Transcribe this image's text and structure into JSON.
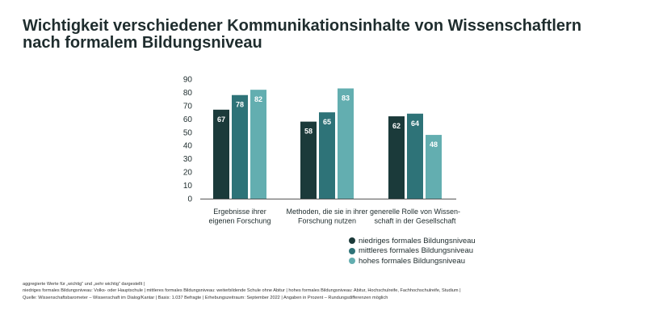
{
  "title_lines": [
    "Wichtigkeit verschiedener Kommunikationsinhalte von Wissenschaftlern",
    "nach formalem Bildungsniveau"
  ],
  "chart_data": {
    "type": "bar",
    "categories": [
      [
        "Ergebnisse ihrer",
        "eigenen Forschung"
      ],
      [
        "Methoden, die sie in ihrer",
        "Forschung nutzen"
      ],
      [
        "generelle Rolle von Wissen-",
        "schaft in der Gesellschaft"
      ]
    ],
    "series": [
      {
        "name": "niedriges formales Bildungsniveau",
        "values": [
          67,
          58,
          62
        ],
        "color": "#1b3a3a"
      },
      {
        "name": "mittleres formales Bildungsniveau",
        "values": [
          78,
          65,
          64
        ],
        "color": "#2e7378"
      },
      {
        "name": "hohes formales Bildungsniveau",
        "values": [
          82,
          83,
          48
        ],
        "color": "#63aeb0"
      }
    ],
    "ylim": [
      0,
      90
    ],
    "yticks": [
      0,
      10,
      20,
      30,
      40,
      50,
      60,
      70,
      80,
      90
    ],
    "legend_position": "bottom-right"
  },
  "footer_lines": [
    "aggregierte Werte für „wichtig“ und „sehr wichtig“ dargestellt |",
    "niedriges formales Bildungsniveau: Volks- oder Hauptschule | mittleres formales Bildungsniveau: weiterbildende Schule ohne Abitur | hohes formales Bildungsniveau: Abitur, Hochschulreife, Fachhochschulreife, Studium |",
    "Quelle: Wissenschaftsbarometer – Wissenschaft im Dialog/Kantar | Basis: 1.037 Befragte | Erhebungszeitraum: September 2022 | Angaben in Prozent – Rundungsdifferenzen möglich"
  ]
}
